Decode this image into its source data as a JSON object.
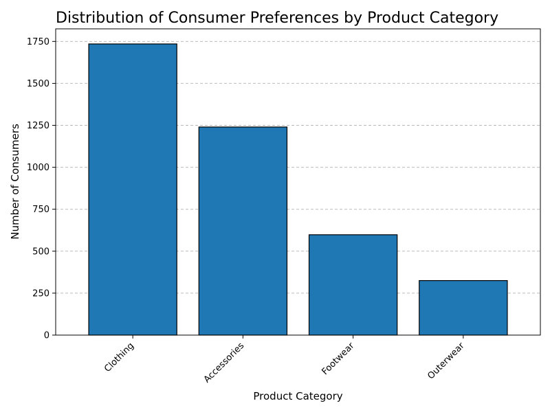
{
  "chart_data": {
    "type": "bar",
    "title": "Distribution of Consumer Preferences by Product Category",
    "xlabel": "Product Category",
    "ylabel": "Number of Consumers",
    "categories": [
      "Clothing",
      "Accessories",
      "Footwear",
      "Outerwear"
    ],
    "values": [
      1735,
      1240,
      598,
      325
    ],
    "ylim": [
      0,
      1825
    ],
    "yticks": [
      0,
      250,
      500,
      750,
      1000,
      1250,
      1500,
      1750
    ],
    "ytick_labels": [
      "0",
      "250",
      "500",
      "750",
      "1000",
      "1250",
      "1500",
      "1750"
    ],
    "grid": "y-dashed",
    "legend": "none",
    "colors": {
      "bar_fill": "#1f77b4",
      "bar_edge": "#000000",
      "grid": "#b0b0b0",
      "axis": "#000000"
    }
  }
}
